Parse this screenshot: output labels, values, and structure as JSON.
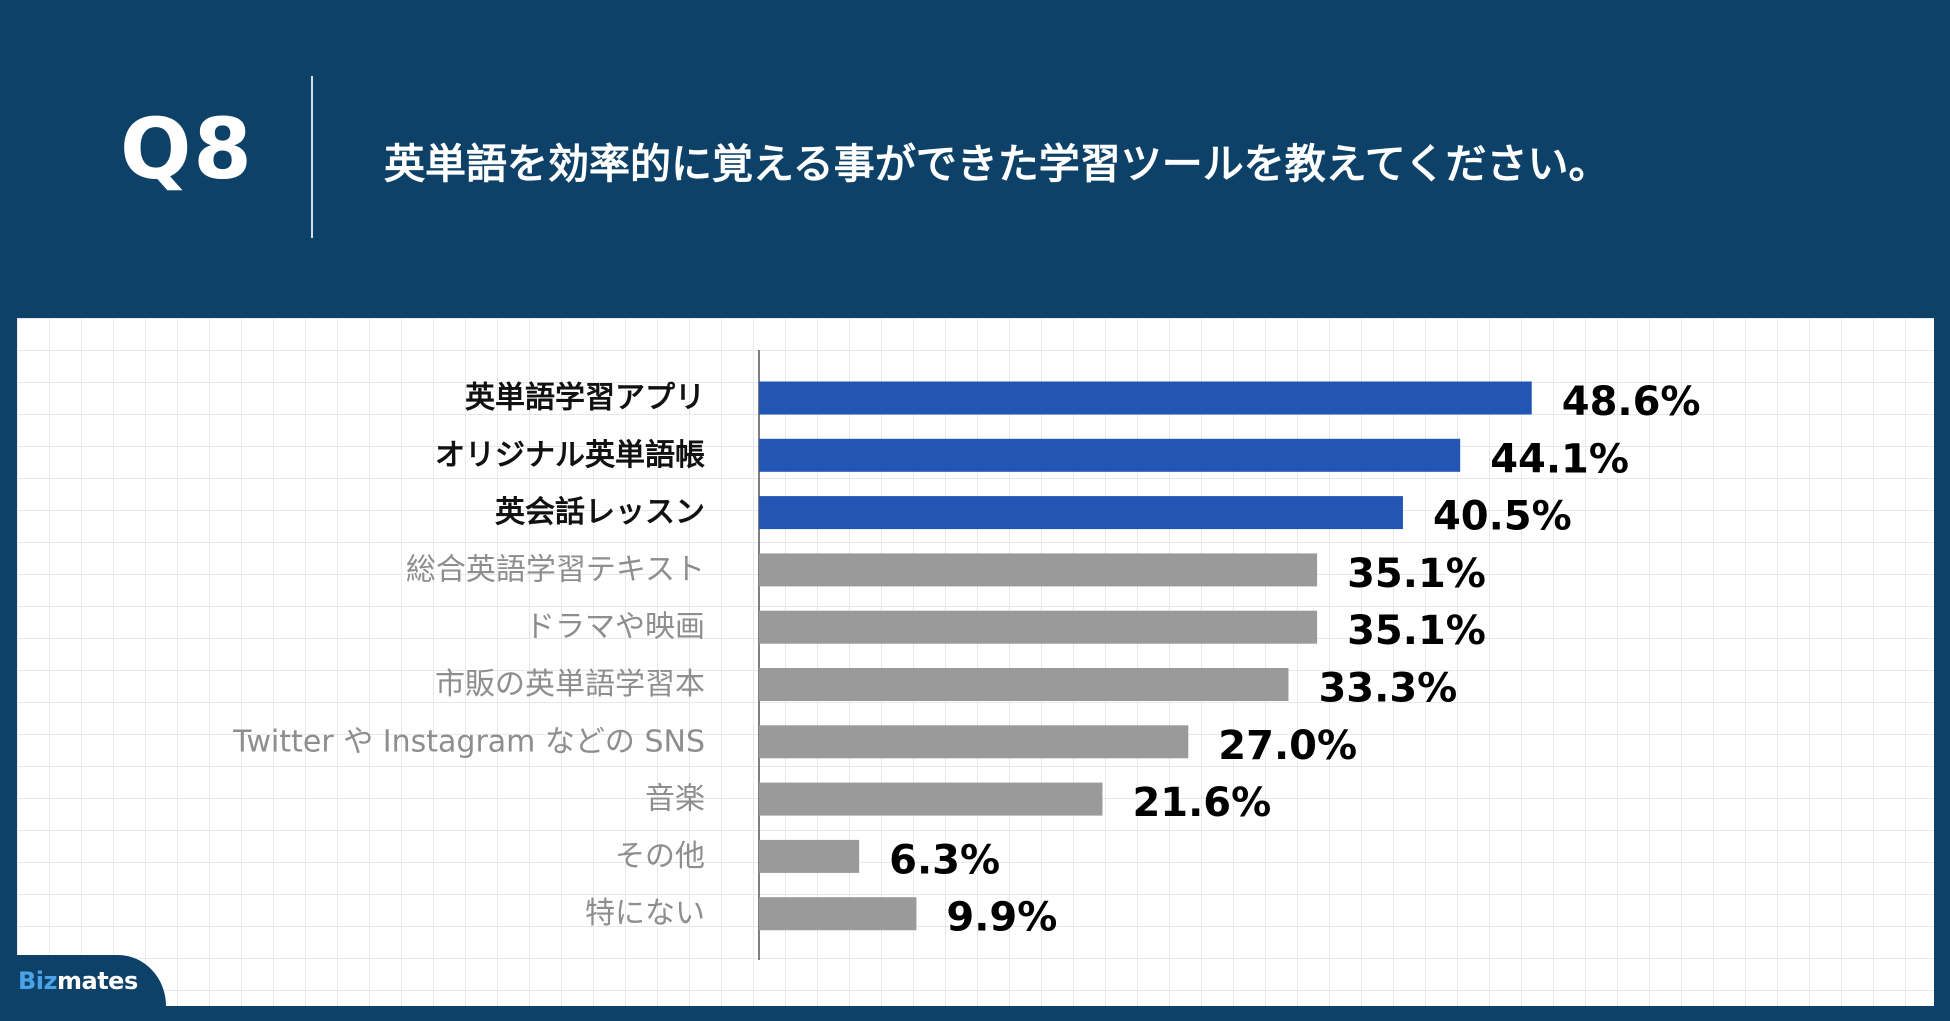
{
  "header": {
    "question_number": "Q8",
    "question_text": "英単語を効率的に覚える事ができた学習ツールを教えてください。"
  },
  "brand": {
    "logo_text_prefix": "Biz",
    "logo_text_suffix": "mates"
  },
  "colors": {
    "background": "#0d4167",
    "highlight_bar": "#2255b4",
    "other_bar": "#9a9a9a",
    "highlight_label": "#111111",
    "other_label": "#8e8e8e"
  },
  "chart_data": {
    "type": "bar",
    "orientation": "horizontal",
    "title": "",
    "xlabel": "",
    "ylabel": "",
    "xlim": [
      0,
      60
    ],
    "unit": "%",
    "categories": [
      "英単語学習アプリ",
      "オリジナル英単語帳",
      "英会話レッスン",
      "総合英語学習テキスト",
      "ドラマや映画",
      "市販の英単語学習本",
      "Twitter や Instagram などの SNS",
      "音楽",
      "その他",
      "特にない"
    ],
    "values": [
      48.6,
      44.1,
      40.5,
      35.1,
      35.1,
      33.3,
      27.0,
      21.6,
      6.3,
      9.9
    ],
    "value_labels": [
      "48.6%",
      "44.1%",
      "40.5%",
      "35.1%",
      "35.1%",
      "33.3%",
      "27.0%",
      "21.6%",
      "6.3%",
      "9.9%"
    ],
    "highlighted": [
      true,
      true,
      true,
      false,
      false,
      false,
      false,
      false,
      false,
      false
    ],
    "grid": true
  }
}
